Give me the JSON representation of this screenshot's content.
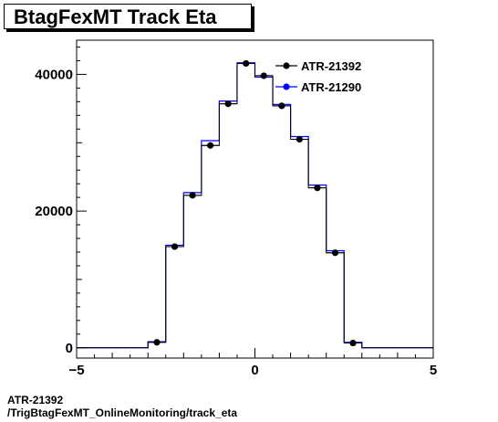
{
  "title": "BtagFexMT Track Eta",
  "footer": {
    "line1": "ATR-21392",
    "line2": "/TrigBtagFexMT_OnlineMonitoring/track_eta"
  },
  "chart_data": {
    "type": "line",
    "title": "BtagFexMT Track Eta",
    "xlabel": "",
    "ylabel": "",
    "xlim": [
      -5,
      5
    ],
    "ylim": [
      -1500,
      45000
    ],
    "x_ticks": [
      -5,
      0,
      5
    ],
    "x_tick_labels": [
      "−5",
      "0",
      "5"
    ],
    "y_ticks": [
      0,
      20000,
      40000
    ],
    "y_tick_labels": [
      "0",
      "20000",
      "40000"
    ],
    "bin_edges": [
      -5,
      -3,
      -2.5,
      -2,
      -1.5,
      -1,
      -0.5,
      0,
      0.5,
      1,
      1.5,
      2,
      2.5,
      3,
      5
    ],
    "legend_position": "top-right",
    "series": [
      {
        "name": "ATR-21392",
        "color": "#000000",
        "style": "markers",
        "x": [
          -4,
          -2.75,
          -2.25,
          -1.75,
          -1.25,
          -0.75,
          -0.25,
          0.25,
          0.75,
          1.25,
          1.75,
          2.25,
          2.75,
          4
        ],
        "values": [
          0,
          800,
          14800,
          22300,
          29600,
          35700,
          41600,
          39800,
          35400,
          30500,
          23400,
          13900,
          700,
          0
        ]
      },
      {
        "name": "ATR-21290",
        "color": "#0000ff",
        "style": "histogram",
        "x": [
          -4,
          -2.75,
          -2.25,
          -1.75,
          -1.25,
          -0.75,
          -0.25,
          0.25,
          0.75,
          1.25,
          1.75,
          2.25,
          2.75,
          4
        ],
        "values": [
          0,
          900,
          15000,
          22700,
          30300,
          36100,
          41700,
          39600,
          35600,
          30900,
          23800,
          14200,
          800,
          0
        ]
      }
    ]
  }
}
